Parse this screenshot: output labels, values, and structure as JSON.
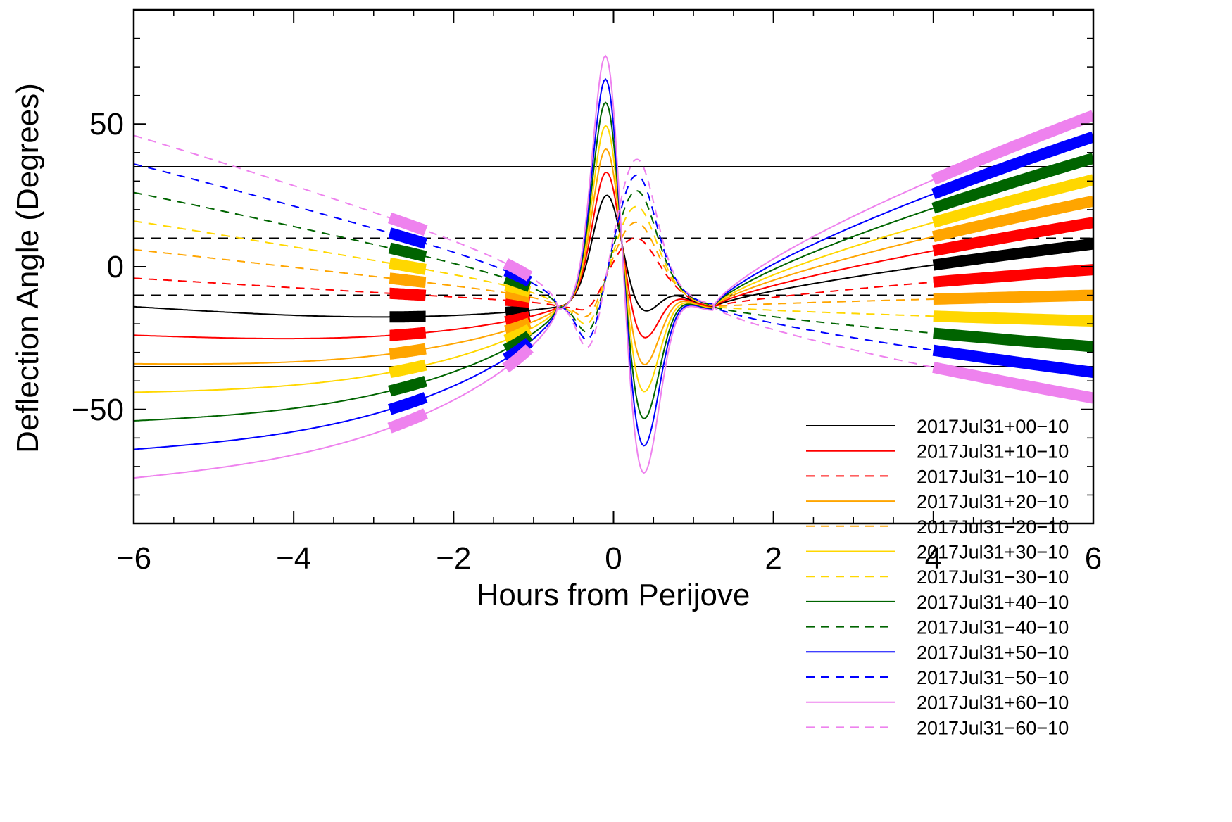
{
  "chart_data": {
    "type": "line",
    "title": "",
    "xlabel": "Hours from Perijove",
    "ylabel": "Deflection Angle (Degrees)",
    "xlim": [
      -6,
      6
    ],
    "ylim": [
      -90,
      90
    ],
    "x_ticks": [
      -6,
      -4,
      -2,
      0,
      2,
      4,
      6
    ],
    "y_ticks": [
      -50,
      0,
      50
    ],
    "x_tick_labels": [
      "−6",
      "−4",
      "−2",
      "0",
      "2",
      "4",
      "6"
    ],
    "y_tick_labels": [
      "−50",
      "0",
      "50"
    ],
    "reference_lines": [
      {
        "y": 35,
        "style": "solid"
      },
      {
        "y": -35,
        "style": "solid"
      },
      {
        "y": 10,
        "style": "dashed"
      },
      {
        "y": -10,
        "style": "dashed"
      }
    ],
    "legend_position": "bottom-right",
    "series": [
      {
        "name": "2017Jul31+00−10",
        "color": "#000000",
        "dash": "solid",
        "offset": 0
      },
      {
        "name": "2017Jul31+10−10",
        "color": "#ff0000",
        "dash": "solid",
        "offset": 10
      },
      {
        "name": "2017Jul31−10−10",
        "color": "#ff0000",
        "dash": "dashed",
        "offset": -10
      },
      {
        "name": "2017Jul31+20−10",
        "color": "#ffa500",
        "dash": "solid",
        "offset": 20
      },
      {
        "name": "2017Jul31−20−10",
        "color": "#ffa500",
        "dash": "dashed",
        "offset": -20
      },
      {
        "name": "2017Jul31+30−10",
        "color": "#ffd700",
        "dash": "solid",
        "offset": 30
      },
      {
        "name": "2017Jul31−30−10",
        "color": "#ffd700",
        "dash": "dashed",
        "offset": -30
      },
      {
        "name": "2017Jul31+40−10",
        "color": "#006400",
        "dash": "solid",
        "offset": 40
      },
      {
        "name": "2017Jul31−40−10",
        "color": "#006400",
        "dash": "dashed",
        "offset": -40
      },
      {
        "name": "2017Jul31+50−10",
        "color": "#0000ff",
        "dash": "solid",
        "offset": 50
      },
      {
        "name": "2017Jul31−50−10",
        "color": "#0000ff",
        "dash": "dashed",
        "offset": -50
      },
      {
        "name": "2017Jul31+60−10",
        "color": "#ee82ee",
        "dash": "solid",
        "offset": 60
      },
      {
        "name": "2017Jul31−60−10",
        "color": "#ee82ee",
        "dash": "dashed",
        "offset": -60
      }
    ]
  }
}
